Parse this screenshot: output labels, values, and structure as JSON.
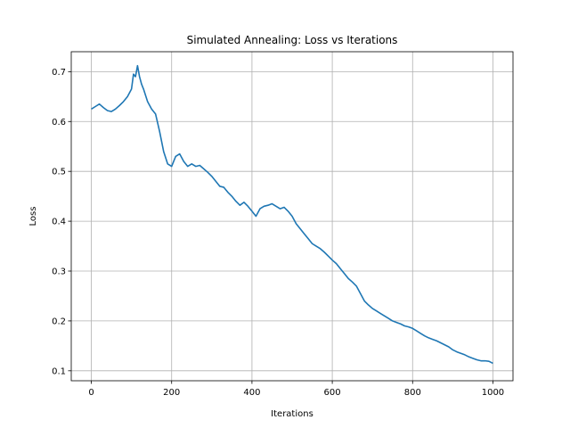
{
  "chart_data": {
    "type": "line",
    "title": "Simulated Annealing: Loss vs Iterations",
    "xlabel": "Iterations",
    "ylabel": "Loss",
    "xlim": [
      -50,
      1050
    ],
    "ylim": [
      0.08,
      0.74
    ],
    "xticks": [
      0,
      200,
      400,
      600,
      800,
      1000
    ],
    "yticks": [
      0.1,
      0.2,
      0.3,
      0.4,
      0.5,
      0.6,
      0.7
    ],
    "grid": true,
    "line_color": "#1f77b4",
    "series": [
      {
        "x": [
          0,
          10,
          20,
          30,
          40,
          50,
          60,
          70,
          80,
          90,
          100,
          105,
          110,
          115,
          120,
          125,
          130,
          140,
          150,
          160,
          170,
          180,
          190,
          200,
          210,
          220,
          230,
          240,
          250,
          260,
          270,
          280,
          290,
          300,
          310,
          320,
          330,
          340,
          350,
          360,
          370,
          380,
          390,
          400,
          410,
          420,
          430,
          440,
          450,
          460,
          470,
          480,
          490,
          500,
          510,
          520,
          530,
          540,
          550,
          560,
          570,
          580,
          590,
          600,
          610,
          620,
          630,
          640,
          650,
          660,
          670,
          680,
          690,
          700,
          710,
          720,
          730,
          740,
          750,
          760,
          770,
          780,
          790,
          800,
          810,
          820,
          830,
          840,
          850,
          860,
          870,
          880,
          890,
          900,
          910,
          920,
          930,
          940,
          950,
          960,
          970,
          980,
          990,
          1000
        ],
        "y": [
          0.625,
          0.63,
          0.635,
          0.628,
          0.622,
          0.62,
          0.625,
          0.632,
          0.64,
          0.65,
          0.665,
          0.695,
          0.69,
          0.712,
          0.69,
          0.675,
          0.665,
          0.64,
          0.625,
          0.615,
          0.58,
          0.54,
          0.515,
          0.51,
          0.53,
          0.535,
          0.52,
          0.51,
          0.515,
          0.51,
          0.512,
          0.505,
          0.498,
          0.49,
          0.48,
          0.47,
          0.468,
          0.458,
          0.45,
          0.44,
          0.432,
          0.438,
          0.43,
          0.42,
          0.41,
          0.425,
          0.43,
          0.432,
          0.435,
          0.43,
          0.425,
          0.428,
          0.42,
          0.41,
          0.395,
          0.385,
          0.375,
          0.365,
          0.355,
          0.35,
          0.345,
          0.338,
          0.33,
          0.322,
          0.315,
          0.305,
          0.295,
          0.285,
          0.278,
          0.27,
          0.255,
          0.24,
          0.232,
          0.225,
          0.22,
          0.215,
          0.21,
          0.205,
          0.2,
          0.197,
          0.194,
          0.19,
          0.188,
          0.185,
          0.18,
          0.175,
          0.17,
          0.166,
          0.163,
          0.16,
          0.156,
          0.152,
          0.148,
          0.142,
          0.138,
          0.135,
          0.132,
          0.128,
          0.125,
          0.122,
          0.12,
          0.12,
          0.119,
          0.115
        ]
      }
    ]
  }
}
